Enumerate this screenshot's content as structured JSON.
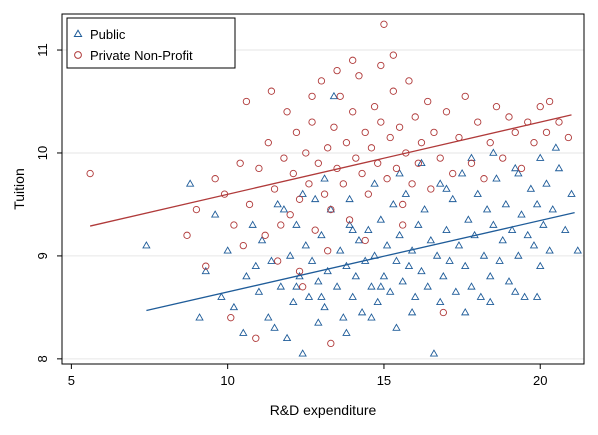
{
  "chart_data": {
    "type": "scatter",
    "xlabel": "R&D expenditure",
    "ylabel": "Tuition",
    "xlim": [
      4.7,
      21.4
    ],
    "ylim": [
      7.95,
      11.35
    ],
    "xticks": [
      5,
      10,
      15,
      20
    ],
    "yticks": [
      8,
      9,
      10,
      11
    ],
    "grid": "horizontal",
    "legend_position": "top-left",
    "series": [
      {
        "name": "Public",
        "marker": "triangle",
        "color": "#1f5c99",
        "fit_line": {
          "x": [
            7.4,
            21.1
          ],
          "y": [
            8.47,
            9.42
          ]
        },
        "points": [
          [
            7.4,
            9.1
          ],
          [
            8.8,
            9.7
          ],
          [
            9.1,
            8.4
          ],
          [
            9.3,
            8.85
          ],
          [
            9.6,
            9.4
          ],
          [
            9.8,
            8.6
          ],
          [
            10.0,
            9.05
          ],
          [
            10.2,
            8.5
          ],
          [
            10.5,
            8.25
          ],
          [
            10.6,
            8.8
          ],
          [
            10.8,
            9.3
          ],
          [
            11.0,
            8.65
          ],
          [
            11.1,
            9.15
          ],
          [
            11.3,
            8.4
          ],
          [
            11.4,
            8.95
          ],
          [
            11.6,
            9.5
          ],
          [
            11.7,
            8.7
          ],
          [
            11.9,
            8.2
          ],
          [
            12.0,
            9.0
          ],
          [
            12.1,
            8.55
          ],
          [
            12.2,
            9.3
          ],
          [
            12.3,
            8.8
          ],
          [
            12.4,
            8.05
          ],
          [
            12.5,
            9.1
          ],
          [
            12.6,
            8.6
          ],
          [
            12.7,
            8.95
          ],
          [
            12.8,
            9.55
          ],
          [
            12.9,
            8.75
          ],
          [
            13.0,
            9.2
          ],
          [
            13.1,
            8.5
          ],
          [
            13.2,
            8.85
          ],
          [
            13.3,
            9.45
          ],
          [
            13.4,
            10.55
          ],
          [
            13.5,
            8.7
          ],
          [
            13.6,
            9.05
          ],
          [
            13.7,
            8.4
          ],
          [
            13.8,
            8.9
          ],
          [
            13.9,
            9.3
          ],
          [
            14.0,
            8.6
          ],
          [
            14.1,
            8.8
          ],
          [
            14.2,
            9.15
          ],
          [
            14.3,
            8.45
          ],
          [
            14.4,
            8.95
          ],
          [
            14.5,
            9.25
          ],
          [
            14.6,
            8.7
          ],
          [
            14.7,
            9.0
          ],
          [
            14.8,
            8.55
          ],
          [
            14.9,
            9.35
          ],
          [
            15.0,
            8.8
          ],
          [
            15.1,
            9.1
          ],
          [
            15.2,
            8.65
          ],
          [
            15.3,
            9.5
          ],
          [
            15.4,
            8.95
          ],
          [
            15.5,
            9.2
          ],
          [
            15.6,
            8.75
          ],
          [
            15.7,
            9.6
          ],
          [
            15.8,
            8.9
          ],
          [
            15.9,
            9.05
          ],
          [
            16.0,
            8.6
          ],
          [
            16.1,
            9.3
          ],
          [
            16.2,
            8.85
          ],
          [
            16.3,
            9.45
          ],
          [
            16.4,
            8.7
          ],
          [
            16.5,
            9.15
          ],
          [
            16.6,
            8.05
          ],
          [
            16.7,
            9.0
          ],
          [
            16.8,
            9.7
          ],
          [
            16.9,
            8.8
          ],
          [
            17.0,
            9.25
          ],
          [
            17.1,
            8.95
          ],
          [
            17.2,
            9.55
          ],
          [
            17.3,
            8.65
          ],
          [
            17.4,
            9.1
          ],
          [
            17.5,
            9.8
          ],
          [
            17.6,
            8.9
          ],
          [
            17.7,
            9.35
          ],
          [
            17.8,
            8.7
          ],
          [
            17.9,
            9.2
          ],
          [
            18.0,
            9.6
          ],
          [
            18.1,
            8.6
          ],
          [
            18.2,
            9.0
          ],
          [
            18.3,
            9.45
          ],
          [
            18.4,
            8.8
          ],
          [
            18.5,
            9.3
          ],
          [
            18.6,
            9.75
          ],
          [
            18.7,
            8.95
          ],
          [
            18.8,
            9.15
          ],
          [
            18.9,
            9.5
          ],
          [
            19.0,
            8.75
          ],
          [
            19.1,
            9.25
          ],
          [
            19.2,
            9.85
          ],
          [
            19.3,
            9.0
          ],
          [
            19.4,
            9.4
          ],
          [
            19.5,
            8.6
          ],
          [
            19.6,
            9.2
          ],
          [
            19.7,
            9.65
          ],
          [
            19.8,
            9.1
          ],
          [
            19.9,
            9.5
          ],
          [
            20.0,
            8.9
          ],
          [
            20.1,
            9.3
          ],
          [
            20.2,
            9.7
          ],
          [
            20.3,
            9.05
          ],
          [
            20.4,
            9.45
          ],
          [
            20.6,
            9.85
          ],
          [
            20.8,
            9.25
          ],
          [
            21.0,
            9.6
          ],
          [
            21.2,
            9.05
          ],
          [
            12.9,
            8.35
          ],
          [
            13.8,
            8.25
          ],
          [
            14.6,
            8.4
          ],
          [
            15.4,
            8.3
          ],
          [
            11.8,
            9.45
          ],
          [
            12.4,
            9.6
          ],
          [
            13.1,
            9.75
          ],
          [
            13.9,
            9.55
          ],
          [
            14.7,
            9.7
          ],
          [
            15.5,
            9.8
          ],
          [
            16.2,
            9.9
          ],
          [
            17.0,
            9.65
          ],
          [
            17.8,
            9.95
          ],
          [
            18.5,
            10.0
          ],
          [
            19.3,
            9.8
          ],
          [
            20.0,
            9.95
          ],
          [
            20.5,
            10.05
          ],
          [
            10.9,
            8.9
          ],
          [
            11.5,
            8.3
          ],
          [
            12.2,
            8.7
          ],
          [
            13.0,
            8.6
          ],
          [
            14.0,
            9.25
          ],
          [
            14.9,
            8.7
          ],
          [
            15.9,
            8.45
          ],
          [
            16.8,
            8.55
          ],
          [
            17.6,
            8.45
          ],
          [
            18.4,
            8.55
          ],
          [
            19.2,
            8.65
          ],
          [
            19.9,
            8.6
          ]
        ]
      },
      {
        "name": "Private Non-Profit",
        "marker": "circle",
        "color": "#b03a3a",
        "fit_line": {
          "x": [
            5.6,
            21.0
          ],
          "y": [
            9.29,
            10.37
          ]
        },
        "points": [
          [
            5.6,
            9.8
          ],
          [
            8.7,
            9.2
          ],
          [
            9.0,
            9.45
          ],
          [
            9.3,
            8.9
          ],
          [
            9.6,
            9.75
          ],
          [
            9.9,
            9.6
          ],
          [
            10.1,
            8.4
          ],
          [
            10.2,
            9.3
          ],
          [
            10.4,
            9.9
          ],
          [
            10.6,
            10.5
          ],
          [
            10.7,
            9.5
          ],
          [
            10.9,
            8.2
          ],
          [
            11.0,
            9.85
          ],
          [
            11.2,
            9.2
          ],
          [
            11.3,
            10.1
          ],
          [
            11.5,
            9.65
          ],
          [
            11.6,
            8.95
          ],
          [
            11.8,
            9.95
          ],
          [
            11.9,
            10.4
          ],
          [
            12.0,
            9.4
          ],
          [
            12.1,
            9.8
          ],
          [
            12.2,
            10.2
          ],
          [
            12.3,
            9.55
          ],
          [
            12.4,
            8.7
          ],
          [
            12.5,
            10.0
          ],
          [
            12.6,
            9.7
          ],
          [
            12.7,
            10.3
          ],
          [
            12.8,
            9.25
          ],
          [
            12.9,
            9.9
          ],
          [
            13.0,
            10.7
          ],
          [
            13.1,
            9.6
          ],
          [
            13.2,
            10.05
          ],
          [
            13.3,
            9.45
          ],
          [
            13.4,
            10.25
          ],
          [
            13.5,
            9.85
          ],
          [
            13.6,
            10.55
          ],
          [
            13.7,
            9.7
          ],
          [
            13.8,
            10.1
          ],
          [
            13.9,
            9.35
          ],
          [
            14.0,
            10.4
          ],
          [
            14.1,
            9.95
          ],
          [
            14.2,
            10.75
          ],
          [
            14.3,
            9.8
          ],
          [
            14.4,
            10.2
          ],
          [
            14.5,
            9.6
          ],
          [
            14.6,
            10.05
          ],
          [
            14.7,
            10.45
          ],
          [
            14.8,
            9.9
          ],
          [
            14.9,
            10.3
          ],
          [
            15.0,
            11.25
          ],
          [
            15.1,
            9.75
          ],
          [
            15.2,
            10.15
          ],
          [
            15.3,
            10.6
          ],
          [
            15.4,
            9.85
          ],
          [
            15.5,
            10.25
          ],
          [
            15.6,
            9.5
          ],
          [
            15.7,
            10.0
          ],
          [
            15.8,
            10.7
          ],
          [
            15.9,
            9.7
          ],
          [
            16.0,
            10.35
          ],
          [
            16.1,
            9.9
          ],
          [
            16.2,
            10.1
          ],
          [
            16.4,
            10.5
          ],
          [
            16.5,
            9.65
          ],
          [
            16.6,
            10.2
          ],
          [
            16.8,
            9.95
          ],
          [
            17.0,
            10.4
          ],
          [
            17.2,
            9.8
          ],
          [
            17.4,
            10.15
          ],
          [
            17.6,
            10.55
          ],
          [
            17.8,
            9.9
          ],
          [
            18.0,
            10.3
          ],
          [
            18.2,
            9.75
          ],
          [
            18.4,
            10.1
          ],
          [
            18.6,
            10.45
          ],
          [
            18.8,
            9.95
          ],
          [
            19.0,
            10.35
          ],
          [
            19.2,
            10.2
          ],
          [
            19.4,
            9.85
          ],
          [
            19.6,
            10.3
          ],
          [
            19.8,
            10.1
          ],
          [
            20.0,
            10.45
          ],
          [
            20.2,
            10.2
          ],
          [
            20.3,
            10.5
          ],
          [
            20.6,
            10.3
          ],
          [
            20.9,
            10.15
          ],
          [
            16.9,
            8.45
          ],
          [
            11.7,
            9.3
          ],
          [
            12.3,
            8.85
          ],
          [
            13.2,
            9.05
          ],
          [
            14.4,
            9.15
          ],
          [
            15.6,
            9.3
          ],
          [
            12.7,
            10.55
          ],
          [
            13.5,
            10.8
          ],
          [
            14.0,
            10.9
          ],
          [
            14.9,
            10.85
          ],
          [
            15.3,
            10.95
          ],
          [
            13.3,
            8.15
          ],
          [
            10.5,
            9.1
          ],
          [
            11.4,
            10.6
          ]
        ]
      }
    ]
  }
}
